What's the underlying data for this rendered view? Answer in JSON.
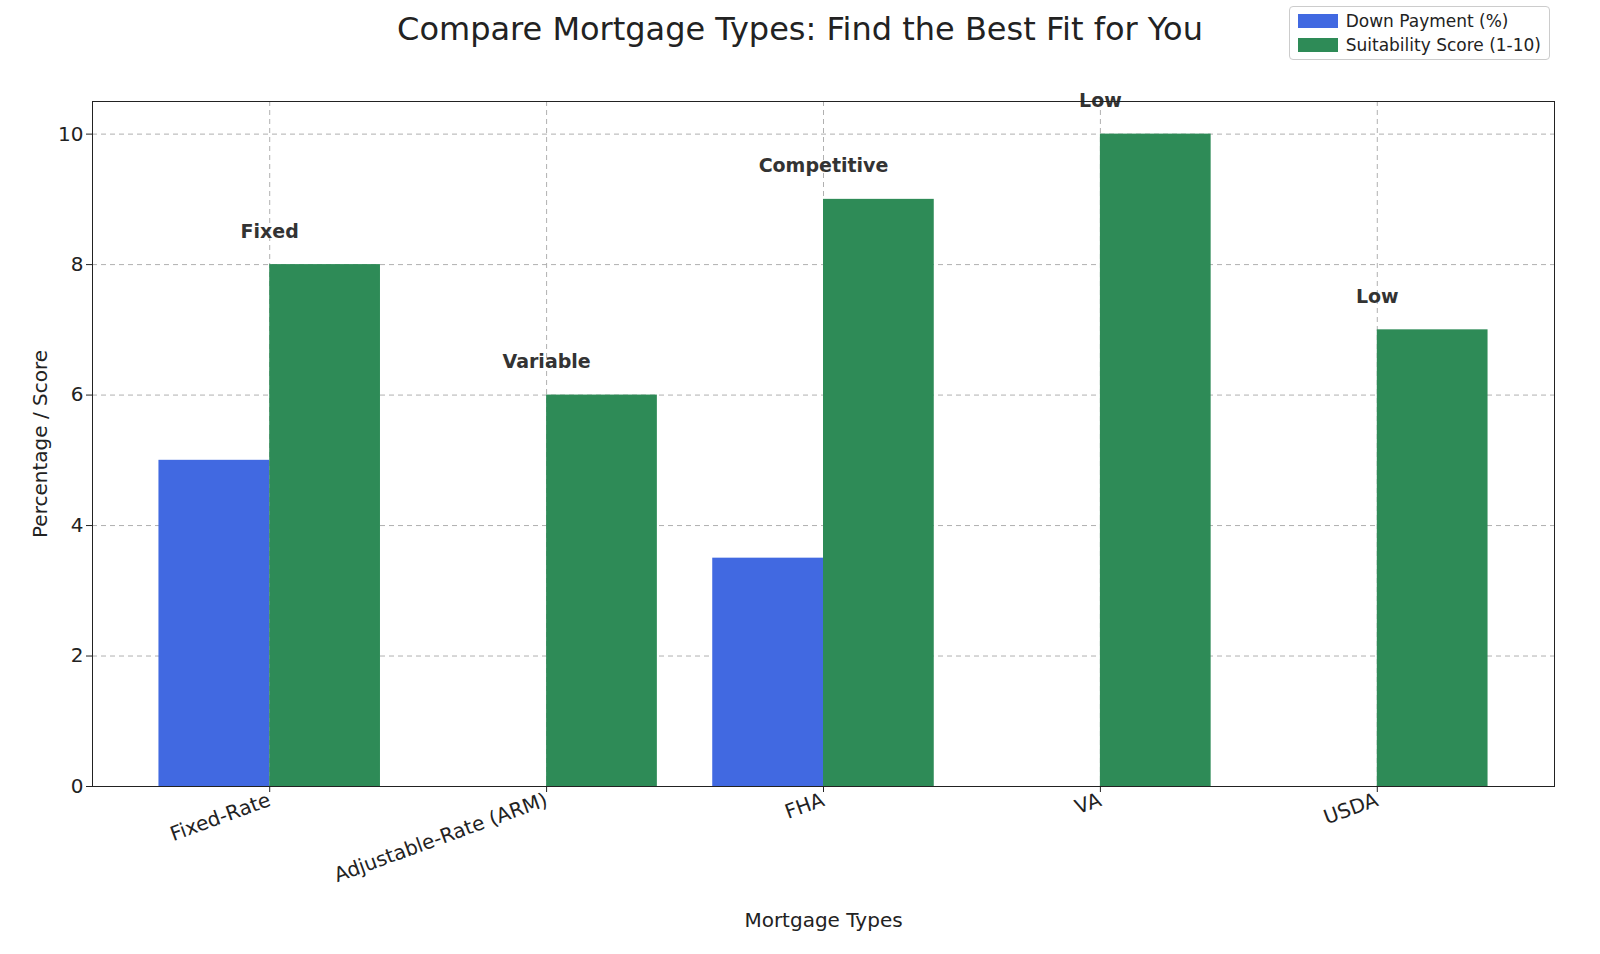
{
  "chart_data": {
    "type": "bar",
    "title": "Compare Mortgage Types: Find the Best Fit for You",
    "x_label": "Mortgage Types",
    "y_label": "Percentage / Score",
    "categories": [
      "Fixed-Rate",
      "Adjustable-Rate (ARM)",
      "FHA",
      "VA",
      "USDA"
    ],
    "series": [
      {
        "name": "Down Payment (%)",
        "color": "#4169e1",
        "values": [
          5,
          0,
          3.5,
          0,
          0
        ]
      },
      {
        "name": "Suitability Score (1-10)",
        "color": "#2e8b57",
        "values": [
          8,
          6,
          9,
          10,
          7
        ]
      }
    ],
    "annotations": [
      "Fixed",
      "Variable",
      "Competitive",
      "Low",
      "Low"
    ],
    "ylim": [
      0,
      10.5
    ],
    "yticks": [
      0,
      2,
      4,
      6,
      8,
      10
    ],
    "grid": true,
    "legend": "upper right"
  }
}
